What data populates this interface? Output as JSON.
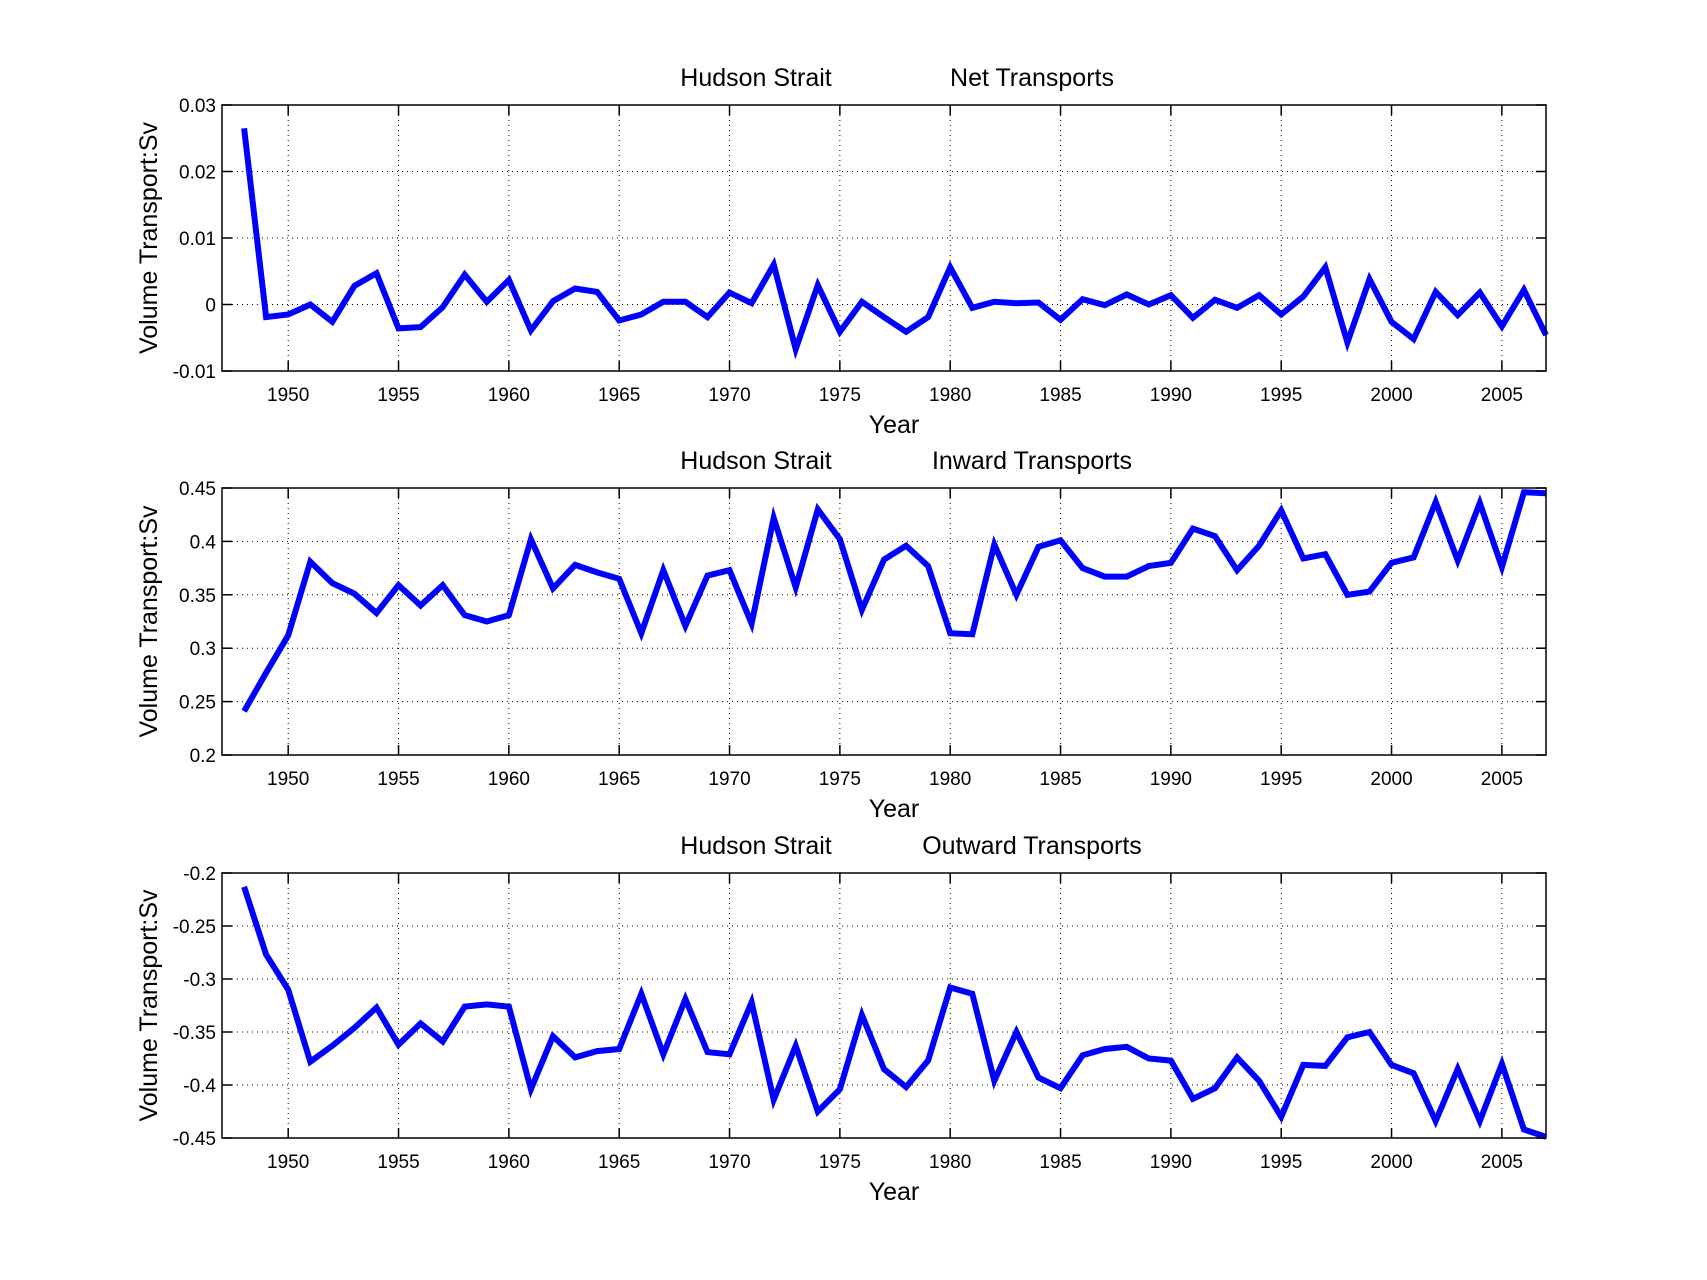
{
  "chart_data": [
    {
      "type": "line",
      "title_left": "Hudson Strait",
      "title_right": "Net Transports",
      "xlabel": "Year",
      "ylabel": "Volume Transport:Sv",
      "xlim": [
        1947,
        2007
      ],
      "ylim": [
        -0.01,
        0.03
      ],
      "xticks": [
        1950,
        1955,
        1960,
        1965,
        1970,
        1975,
        1980,
        1985,
        1990,
        1995,
        2000,
        2005
      ],
      "yticks": [
        -0.01,
        0,
        0.01,
        0.02,
        0.03
      ],
      "ytick_labels": [
        "-0.01",
        "0",
        "0.01",
        "0.02",
        "0.03"
      ],
      "grid": true,
      "color": "#0000ff",
      "x": [
        1948,
        1949,
        1950,
        1951,
        1952,
        1953,
        1954,
        1955,
        1956,
        1957,
        1958,
        1959,
        1960,
        1961,
        1962,
        1963,
        1964,
        1965,
        1966,
        1967,
        1968,
        1969,
        1970,
        1971,
        1972,
        1973,
        1974,
        1975,
        1976,
        1977,
        1978,
        1979,
        1980,
        1981,
        1982,
        1983,
        1984,
        1985,
        1986,
        1987,
        1988,
        1989,
        1990,
        1991,
        1992,
        1993,
        1994,
        1995,
        1996,
        1997,
        1998,
        1999,
        2000,
        2001,
        2002,
        2003,
        2004,
        2005,
        2006,
        2007
      ],
      "values": [
        0.0265,
        -0.0019,
        -0.0015,
        0.0,
        -0.0026,
        0.0028,
        0.0047,
        -0.0036,
        -0.0034,
        -0.0004,
        0.0045,
        0.0004,
        0.0037,
        -0.0039,
        0.0005,
        0.0024,
        0.0019,
        -0.0024,
        -0.0015,
        0.0004,
        0.0004,
        -0.0019,
        0.0018,
        0.0002,
        0.006,
        -0.0067,
        0.0029,
        -0.0041,
        0.0004,
        -0.0019,
        -0.0041,
        -0.0019,
        0.0056,
        -0.0005,
        0.0004,
        0.0002,
        0.0003,
        -0.0023,
        0.0008,
        -0.0001,
        0.0015,
        0.0,
        0.0014,
        -0.002,
        0.0007,
        -0.0005,
        0.0014,
        -0.0015,
        0.0012,
        0.0056,
        -0.0057,
        0.0038,
        -0.0026,
        -0.0052,
        0.0019,
        -0.0016,
        0.0018,
        -0.0033,
        0.0022,
        -0.0046
      ]
    },
    {
      "type": "line",
      "title_left": "Hudson Strait",
      "title_right": "Inward Transports",
      "xlabel": "Year",
      "ylabel": "Volume Transport:Sv",
      "xlim": [
        1947,
        2007
      ],
      "ylim": [
        0.2,
        0.45
      ],
      "xticks": [
        1950,
        1955,
        1960,
        1965,
        1970,
        1975,
        1980,
        1985,
        1990,
        1995,
        2000,
        2005
      ],
      "yticks": [
        0.2,
        0.25,
        0.3,
        0.35,
        0.4,
        0.45
      ],
      "ytick_labels": [
        "0.2",
        "0.25",
        "0.3",
        "0.35",
        "0.4",
        "0.45"
      ],
      "grid": true,
      "color": "#0000ff",
      "x": [
        1948,
        1949,
        1950,
        1951,
        1952,
        1953,
        1954,
        1955,
        1956,
        1957,
        1958,
        1959,
        1960,
        1961,
        1962,
        1963,
        1964,
        1965,
        1966,
        1967,
        1968,
        1969,
        1970,
        1971,
        1972,
        1973,
        1974,
        1975,
        1976,
        1977,
        1978,
        1979,
        1980,
        1981,
        1982,
        1983,
        1984,
        1985,
        1986,
        1987,
        1988,
        1989,
        1990,
        1991,
        1992,
        1993,
        1994,
        1995,
        1996,
        1997,
        1998,
        1999,
        2000,
        2001,
        2002,
        2003,
        2004,
        2005,
        2006,
        2007
      ],
      "values": [
        0.241,
        0.277,
        0.312,
        0.381,
        0.361,
        0.351,
        0.333,
        0.359,
        0.34,
        0.359,
        0.331,
        0.325,
        0.331,
        0.402,
        0.356,
        0.378,
        0.371,
        0.365,
        0.314,
        0.373,
        0.321,
        0.368,
        0.373,
        0.323,
        0.422,
        0.357,
        0.43,
        0.402,
        0.336,
        0.383,
        0.396,
        0.377,
        0.314,
        0.313,
        0.397,
        0.35,
        0.395,
        0.401,
        0.375,
        0.367,
        0.367,
        0.377,
        0.38,
        0.412,
        0.405,
        0.373,
        0.396,
        0.429,
        0.384,
        0.388,
        0.35,
        0.353,
        0.38,
        0.385,
        0.437,
        0.382,
        0.436,
        0.376,
        0.446,
        0.445
      ]
    },
    {
      "type": "line",
      "title_left": "Hudson Strait",
      "title_right": "Outward Transports",
      "xlabel": "Year",
      "ylabel": "Volume Transport:Sv",
      "xlim": [
        1947,
        2007
      ],
      "ylim": [
        -0.45,
        -0.2
      ],
      "xticks": [
        1950,
        1955,
        1960,
        1965,
        1970,
        1975,
        1980,
        1985,
        1990,
        1995,
        2000,
        2005
      ],
      "yticks": [
        -0.45,
        -0.4,
        -0.35,
        -0.3,
        -0.25,
        -0.2
      ],
      "ytick_labels": [
        "-0.45",
        "-0.4",
        "-0.35",
        "-0.3",
        "-0.25",
        "-0.2"
      ],
      "grid": true,
      "color": "#0000ff",
      "x": [
        1948,
        1949,
        1950,
        1951,
        1952,
        1953,
        1954,
        1955,
        1956,
        1957,
        1958,
        1959,
        1960,
        1961,
        1962,
        1963,
        1964,
        1965,
        1966,
        1967,
        1968,
        1969,
        1970,
        1971,
        1972,
        1973,
        1974,
        1975,
        1976,
        1977,
        1978,
        1979,
        1980,
        1981,
        1982,
        1983,
        1984,
        1985,
        1986,
        1987,
        1988,
        1989,
        1990,
        1991,
        1992,
        1993,
        1994,
        1995,
        1996,
        1997,
        1998,
        1999,
        2000,
        2001,
        2002,
        2003,
        2004,
        2005,
        2006,
        2007
      ],
      "values": [
        -0.213,
        -0.277,
        -0.31,
        -0.378,
        -0.363,
        -0.346,
        -0.327,
        -0.362,
        -0.342,
        -0.359,
        -0.326,
        -0.324,
        -0.326,
        -0.404,
        -0.354,
        -0.374,
        -0.368,
        -0.366,
        -0.314,
        -0.371,
        -0.319,
        -0.369,
        -0.371,
        -0.322,
        -0.414,
        -0.363,
        -0.425,
        -0.404,
        -0.334,
        -0.385,
        -0.402,
        -0.377,
        -0.308,
        -0.314,
        -0.396,
        -0.35,
        -0.393,
        -0.403,
        -0.372,
        -0.366,
        -0.364,
        -0.375,
        -0.377,
        -0.413,
        -0.403,
        -0.374,
        -0.396,
        -0.43,
        -0.381,
        -0.382,
        -0.355,
        -0.35,
        -0.381,
        -0.389,
        -0.434,
        -0.385,
        -0.434,
        -0.38,
        -0.442,
        -0.449
      ]
    }
  ]
}
